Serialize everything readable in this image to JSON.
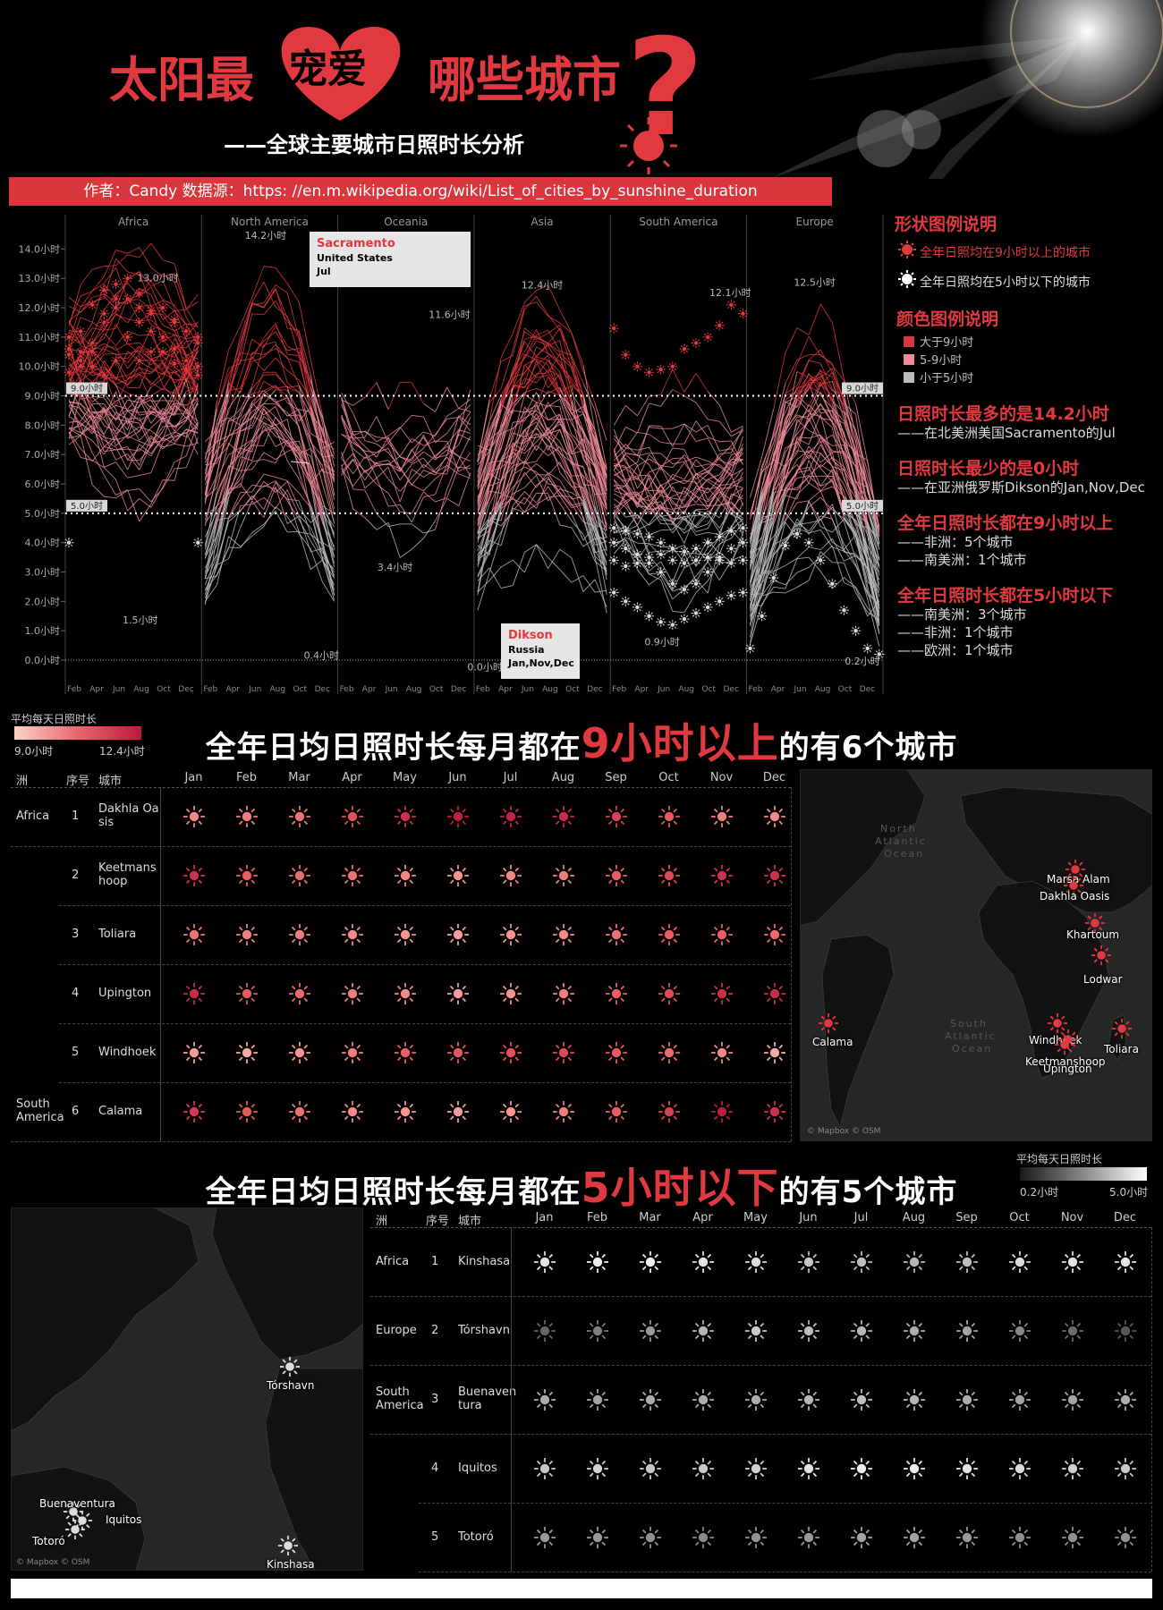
{
  "header": {
    "title_a": "太阳最",
    "title_heart": "宠爱",
    "title_b": "哪些城市",
    "title_q": "?",
    "subtitle": "——全球主要城市日照时长分析",
    "banner": "作者：Candy 数据源：https: //en.m.wikipedia.org/wiki/List_of_cities_by_sunshine_duration"
  },
  "legend": {
    "shape_title": "形状图例说明",
    "shape_items": [
      "全年日照均在9小时以上的城市",
      "全年日照均在5小时以下的城市"
    ],
    "color_title": "颜色图例说明",
    "color_items": [
      {
        "label": "大于9小时",
        "color": "#d9363e"
      },
      {
        "label": "5-9小时",
        "color": "#ef8a98"
      },
      {
        "label": "小于5小时",
        "color": "#bbbbbb"
      }
    ]
  },
  "facts": [
    {
      "head": "日照时长最多的是14.2小时",
      "lines": [
        "——在北美洲美国Sacramento的Jul"
      ]
    },
    {
      "head": "日照时长最少的是0小时",
      "lines": [
        "——在亚洲俄罗斯Dikson的Jan,Nov,Dec"
      ]
    },
    {
      "head": "全年日照时长都在9小时以上",
      "lines": [
        "——非洲：5个城市",
        "——南美洲：1个城市"
      ]
    },
    {
      "head": "全年日照时长都在5小时以下",
      "lines": [
        "——南美洲：3个城市",
        "——非洲：1个城市",
        "——欧洲：1个城市"
      ]
    }
  ],
  "chart_data": {
    "type": "line",
    "panels": [
      "Africa",
      "North America",
      "Oceania",
      "Asia",
      "South America",
      "Europe"
    ],
    "x_tick_labels": [
      "Feb",
      "Apr",
      "Jun",
      "Aug",
      "Oct",
      "Dec"
    ],
    "y_tick_labels": [
      "0.0小时",
      "1.0小时",
      "2.0小时",
      "3.0小时",
      "4.0小时",
      "5.0小时",
      "6.0小时",
      "7.0小时",
      "8.0小时",
      "9.0小时",
      "10.0小时",
      "11.0小时",
      "12.0小时",
      "13.0小时",
      "14.0小时"
    ],
    "ylim": [
      0,
      14.5
    ],
    "reference_lines": [
      {
        "value": 9.0,
        "label": "9.0小时"
      },
      {
        "value": 5.0,
        "label": "5.0小时"
      }
    ],
    "annotations": [
      {
        "panel": "Africa",
        "label": "13.0小时"
      },
      {
        "panel": "Africa",
        "label": "1.5小时"
      },
      {
        "panel": "North America",
        "label": "14.2小时"
      },
      {
        "panel": "North America",
        "label": "0.4小时"
      },
      {
        "panel": "Oceania",
        "label": "11.6小时"
      },
      {
        "panel": "Oceania",
        "label": "3.4小时"
      },
      {
        "panel": "Asia",
        "label": "12.4小时"
      },
      {
        "panel": "Asia",
        "label": "0.0小时"
      },
      {
        "panel": "South America",
        "label": "12.1小时"
      },
      {
        "panel": "South America",
        "label": "0.9小时"
      },
      {
        "panel": "Europe",
        "label": "12.5小时"
      },
      {
        "panel": "Europe",
        "label": "0.2小时"
      }
    ],
    "tooltip_max": {
      "city": "Sacramento",
      "country": "United States",
      "month": "Jul"
    },
    "tooltip_min": {
      "city": "Dikson",
      "country": "Russia",
      "month": "Jan,Nov,Dec"
    }
  },
  "grad1": {
    "title": "平均每天日照时长",
    "min": "9.0小时",
    "max": "12.4小时"
  },
  "grad2": {
    "title": "平均每天日照时长",
    "min": "0.2小时",
    "max": "5.0小时"
  },
  "section1": {
    "pre": "全年日均日照时长每月都在",
    "hl": "9小时以上",
    "post": "的有6个城市",
    "head": [
      "洲",
      "序号",
      "城市",
      "Jan",
      "Feb",
      "Mar",
      "Apr",
      "May",
      "Jun",
      "Jul",
      "Aug",
      "Sep",
      "Oct",
      "Nov",
      "Dec"
    ],
    "rows": [
      {
        "cont": "Africa",
        "no": "1",
        "city": "Dakhla Oasis",
        "levels": [
          0.3,
          0.35,
          0.4,
          0.6,
          0.8,
          0.95,
          0.9,
          0.85,
          0.7,
          0.55,
          0.35,
          0.3
        ]
      },
      {
        "cont": "",
        "no": "2",
        "city": "Keetmanshoop",
        "levels": [
          0.8,
          0.5,
          0.45,
          0.4,
          0.3,
          0.25,
          0.3,
          0.35,
          0.5,
          0.65,
          0.8,
          0.8
        ]
      },
      {
        "cont": "",
        "no": "3",
        "city": "Toliara",
        "levels": [
          0.4,
          0.35,
          0.35,
          0.3,
          0.25,
          0.2,
          0.25,
          0.3,
          0.4,
          0.5,
          0.5,
          0.45
        ]
      },
      {
        "cont": "",
        "no": "4",
        "city": "Upington",
        "levels": [
          0.85,
          0.55,
          0.45,
          0.35,
          0.3,
          0.2,
          0.25,
          0.35,
          0.5,
          0.65,
          0.8,
          0.85
        ]
      },
      {
        "cont": "",
        "no": "5",
        "city": "Windhoek",
        "levels": [
          0.2,
          0.15,
          0.25,
          0.35,
          0.5,
          0.55,
          0.6,
          0.65,
          0.55,
          0.45,
          0.3,
          0.15
        ]
      },
      {
        "cont": "South America",
        "no": "6",
        "city": "Calama",
        "levels": [
          0.75,
          0.55,
          0.4,
          0.3,
          0.25,
          0.2,
          0.25,
          0.35,
          0.5,
          0.7,
          0.95,
          0.8
        ]
      }
    ]
  },
  "section2": {
    "pre": "全年日均日照时长每月都在",
    "hl": "5小时以下",
    "post": "的有5个城市",
    "head": [
      "洲",
      "序号",
      "城市",
      "Jan",
      "Feb",
      "Mar",
      "Apr",
      "May",
      "Jun",
      "Jul",
      "Aug",
      "Sep",
      "Oct",
      "Nov",
      "Dec"
    ],
    "rows": [
      {
        "cont": "Africa",
        "no": "1",
        "city": "Kinshasa",
        "levels": [
          0.85,
          0.9,
          0.9,
          0.85,
          0.8,
          0.7,
          0.65,
          0.6,
          0.65,
          0.8,
          0.85,
          0.85
        ]
      },
      {
        "cont": "Europe",
        "no": "2",
        "city": "Tórshavn",
        "levels": [
          0.15,
          0.3,
          0.45,
          0.6,
          0.7,
          0.65,
          0.6,
          0.55,
          0.5,
          0.35,
          0.2,
          0.1
        ]
      },
      {
        "cont": "South America",
        "no": "3",
        "city": "Buenaventura",
        "levels": [
          0.55,
          0.5,
          0.55,
          0.55,
          0.55,
          0.6,
          0.65,
          0.6,
          0.55,
          0.5,
          0.5,
          0.55
        ]
      },
      {
        "cont": "",
        "no": "4",
        "city": "Iquitos",
        "levels": [
          0.7,
          0.75,
          0.7,
          0.7,
          0.75,
          0.85,
          0.9,
          0.9,
          0.85,
          0.8,
          0.75,
          0.7
        ]
      },
      {
        "cont": "",
        "no": "5",
        "city": "Totoró",
        "levels": [
          0.45,
          0.45,
          0.4,
          0.35,
          0.4,
          0.45,
          0.5,
          0.5,
          0.45,
          0.4,
          0.4,
          0.4
        ]
      }
    ]
  },
  "map1": {
    "cities": [
      {
        "name": "Marsa Alam"
      },
      {
        "name": "Dakhla Oasis"
      },
      {
        "name": "Khartoum"
      },
      {
        "name": "Lodwar"
      },
      {
        "name": "Calama"
      },
      {
        "name": "Windhoek"
      },
      {
        "name": "Keetmanshoop"
      },
      {
        "name": "Upington"
      },
      {
        "name": "Toliara"
      }
    ],
    "ocean_labels": [
      "North",
      "Atlantic",
      "Ocean",
      "South",
      "Atlantic",
      "Ocean"
    ],
    "attribution": "© Mapbox © OSM"
  },
  "map2": {
    "cities": [
      {
        "name": "Tórshavn"
      },
      {
        "name": "Buenaventura"
      },
      {
        "name": "Totoró"
      },
      {
        "name": "Iquitos"
      },
      {
        "name": "Kinshasa"
      }
    ],
    "attribution": "© Mapbox © OSM"
  },
  "colors": {
    "accent": "#e0393f",
    "mid": "#ef8a98",
    "low": "#bbbbbb"
  }
}
